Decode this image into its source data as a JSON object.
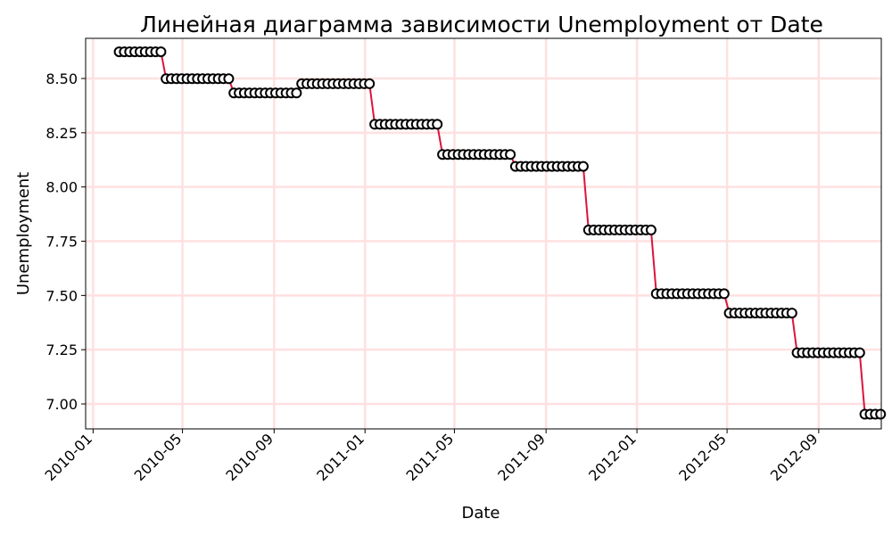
{
  "chart_data": {
    "type": "line",
    "title": "Линейная диаграмма зависимости Unemployment от Date",
    "xlabel": "Date",
    "ylabel": "Unemployment",
    "x_ticks": [
      "2010-01",
      "2010-05",
      "2010-09",
      "2011-01",
      "2011-05",
      "2011-09",
      "2012-01",
      "2012-05",
      "2012-09"
    ],
    "y_ticks": [
      "7.00",
      "7.25",
      "7.50",
      "7.75",
      "8.00",
      "8.25",
      "8.50"
    ],
    "xlim": [
      "2009-12-22",
      "2012-11-24"
    ],
    "ylim": [
      6.885,
      8.685
    ],
    "grid": true,
    "colors": {
      "line": "#dc143c",
      "marker_face": "#ffffff",
      "marker_edge": "#000000",
      "grid": "#ffe0e0"
    },
    "series": [
      {
        "values": [
          8.623,
          8.623,
          8.623,
          8.623,
          8.623,
          8.623,
          8.623,
          8.623,
          8.623,
          8.499,
          8.499,
          8.499,
          8.499,
          8.499,
          8.499,
          8.499,
          8.499,
          8.499,
          8.499,
          8.499,
          8.499,
          8.499,
          8.433,
          8.433,
          8.433,
          8.433,
          8.433,
          8.433,
          8.433,
          8.433,
          8.433,
          8.433,
          8.433,
          8.433,
          8.433,
          8.476,
          8.476,
          8.476,
          8.476,
          8.476,
          8.476,
          8.476,
          8.476,
          8.476,
          8.476,
          8.476,
          8.476,
          8.476,
          8.476,
          8.289,
          8.289,
          8.289,
          8.289,
          8.289,
          8.289,
          8.289,
          8.289,
          8.289,
          8.289,
          8.289,
          8.289,
          8.289,
          8.15,
          8.15,
          8.15,
          8.15,
          8.15,
          8.15,
          8.15,
          8.15,
          8.15,
          8.15,
          8.15,
          8.15,
          8.15,
          8.15,
          8.095,
          8.095,
          8.095,
          8.095,
          8.095,
          8.095,
          8.095,
          8.095,
          8.095,
          8.095,
          8.095,
          8.095,
          8.095,
          8.095,
          7.802,
          7.802,
          7.802,
          7.802,
          7.802,
          7.802,
          7.802,
          7.802,
          7.802,
          7.802,
          7.802,
          7.802,
          7.802,
          7.508,
          7.508,
          7.508,
          7.508,
          7.508,
          7.508,
          7.508,
          7.508,
          7.508,
          7.508,
          7.508,
          7.508,
          7.508,
          7.508,
          7.419,
          7.419,
          7.419,
          7.419,
          7.419,
          7.419,
          7.419,
          7.419,
          7.419,
          7.419,
          7.419,
          7.419,
          7.419,
          7.236,
          7.236,
          7.236,
          7.236,
          7.236,
          7.236,
          7.236,
          7.236,
          7.236,
          7.236,
          7.236,
          7.236,
          7.236,
          6.953,
          6.953,
          6.953,
          6.953
        ]
      }
    ],
    "x": [
      "2010-02-05",
      "2010-02-12",
      "2010-02-19",
      "2010-02-26",
      "2010-03-05",
      "2010-03-12",
      "2010-03-19",
      "2010-03-26",
      "2010-04-02",
      "2010-04-09",
      "2010-04-16",
      "2010-04-23",
      "2010-04-30",
      "2010-05-07",
      "2010-05-14",
      "2010-05-21",
      "2010-05-28",
      "2010-06-04",
      "2010-06-11",
      "2010-06-18",
      "2010-06-25",
      "2010-07-02",
      "2010-07-09",
      "2010-07-16",
      "2010-07-23",
      "2010-07-30",
      "2010-08-06",
      "2010-08-13",
      "2010-08-20",
      "2010-08-27",
      "2010-09-03",
      "2010-09-10",
      "2010-09-17",
      "2010-09-24",
      "2010-10-01",
      "2010-10-08",
      "2010-10-15",
      "2010-10-22",
      "2010-10-29",
      "2010-11-05",
      "2010-11-12",
      "2010-11-19",
      "2010-11-26",
      "2010-12-03",
      "2010-12-10",
      "2010-12-17",
      "2010-12-24",
      "2010-12-31",
      "2011-01-07",
      "2011-01-14",
      "2011-01-21",
      "2011-01-28",
      "2011-02-04",
      "2011-02-11",
      "2011-02-18",
      "2011-02-25",
      "2011-03-04",
      "2011-03-11",
      "2011-03-18",
      "2011-03-25",
      "2011-04-01",
      "2011-04-08",
      "2011-04-15",
      "2011-04-22",
      "2011-04-29",
      "2011-05-06",
      "2011-05-13",
      "2011-05-20",
      "2011-05-27",
      "2011-06-03",
      "2011-06-10",
      "2011-06-17",
      "2011-06-24",
      "2011-07-01",
      "2011-07-08",
      "2011-07-15",
      "2011-07-22",
      "2011-07-29",
      "2011-08-05",
      "2011-08-12",
      "2011-08-19",
      "2011-08-26",
      "2011-09-02",
      "2011-09-09",
      "2011-09-16",
      "2011-09-23",
      "2011-09-30",
      "2011-10-07",
      "2011-10-14",
      "2011-10-21",
      "2011-10-28",
      "2011-11-04",
      "2011-11-11",
      "2011-11-18",
      "2011-11-25",
      "2011-12-02",
      "2011-12-09",
      "2011-12-16",
      "2011-12-23",
      "2011-12-30",
      "2012-01-06",
      "2012-01-13",
      "2012-01-20",
      "2012-01-27",
      "2012-02-03",
      "2012-02-10",
      "2012-02-17",
      "2012-02-24",
      "2012-03-02",
      "2012-03-09",
      "2012-03-16",
      "2012-03-23",
      "2012-03-30",
      "2012-04-06",
      "2012-04-13",
      "2012-04-20",
      "2012-04-27",
      "2012-05-04",
      "2012-05-11",
      "2012-05-18",
      "2012-05-25",
      "2012-06-01",
      "2012-06-08",
      "2012-06-15",
      "2012-06-22",
      "2012-06-29",
      "2012-07-06",
      "2012-07-13",
      "2012-07-20",
      "2012-07-27",
      "2012-08-03",
      "2012-08-10",
      "2012-08-17",
      "2012-08-24",
      "2012-08-31",
      "2012-09-07",
      "2012-09-14",
      "2012-09-21",
      "2012-09-28",
      "2012-10-05",
      "2012-10-12",
      "2012-10-19",
      "2012-10-26",
      "2012-11-02",
      "2012-11-09",
      "2012-11-16",
      "2012-11-23"
    ]
  }
}
